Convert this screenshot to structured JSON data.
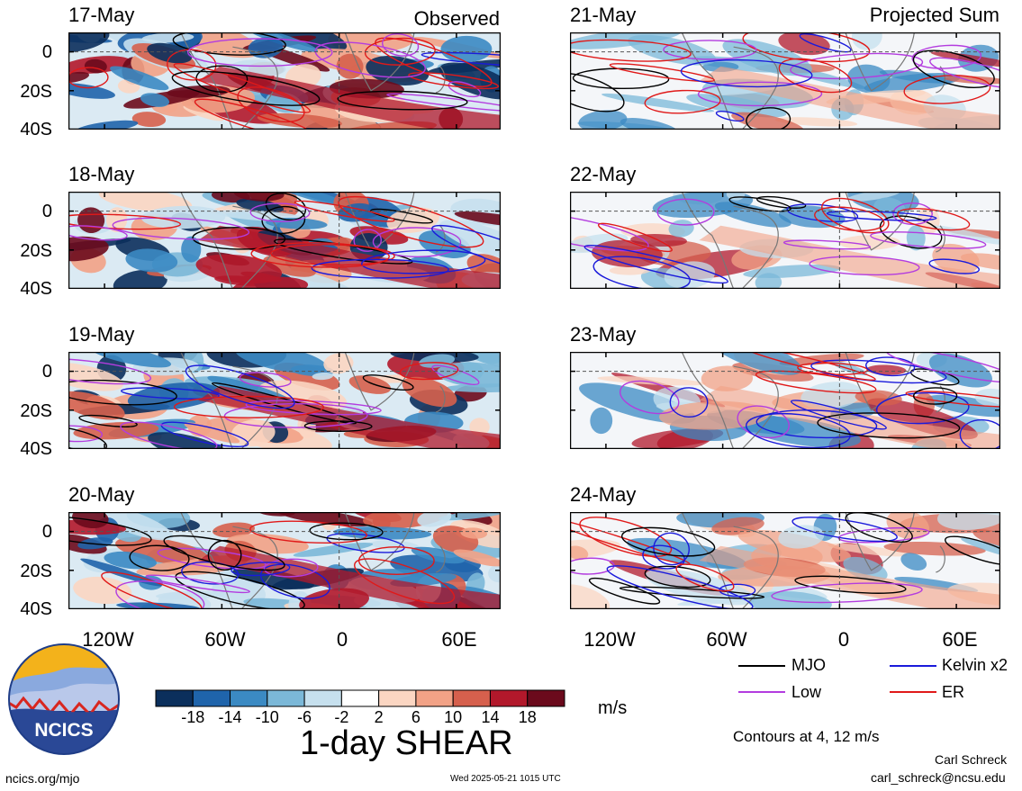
{
  "left_header": "Observed",
  "right_header": "Projected Sum",
  "left_dates": [
    "17-May",
    "18-May",
    "19-May",
    "20-May"
  ],
  "right_dates": [
    "21-May",
    "22-May",
    "23-May",
    "24-May"
  ],
  "y_ticks": [
    "0",
    "20S",
    "40S"
  ],
  "x_ticks": [
    "120W",
    "60W",
    "0",
    "60E"
  ],
  "legend": {
    "mjo": "MJO",
    "kelvin": "Kelvin x2",
    "low": "Low",
    "er": "ER",
    "colors": {
      "mjo": "#000000",
      "kelvin": "#1a1adb",
      "low": "#b33cdf",
      "er": "#e01919"
    }
  },
  "colorbar": {
    "labels": [
      "-18",
      "-14",
      "-10",
      "-6",
      "-2",
      "2",
      "6",
      "10",
      "14",
      "18"
    ],
    "colors": [
      "#0b2f5c",
      "#1f64ab",
      "#3b8ac3",
      "#7bb8d8",
      "#c6e0ee",
      "#ffffff",
      "#fbd6c2",
      "#f2a286",
      "#d6604d",
      "#b2182b",
      "#6b0a1c"
    ],
    "unit": "m/s",
    "title": "1-day SHEAR"
  },
  "logo": {
    "text": "NCICS"
  },
  "contours_note": "Contours at 4, 12 m/s",
  "author": "Carl Schreck",
  "email": "carl_schreck@ncsu.edu",
  "site": "ncics.org/mjo",
  "timestamp": "Wed 2025-05-21 1015 UTC"
}
